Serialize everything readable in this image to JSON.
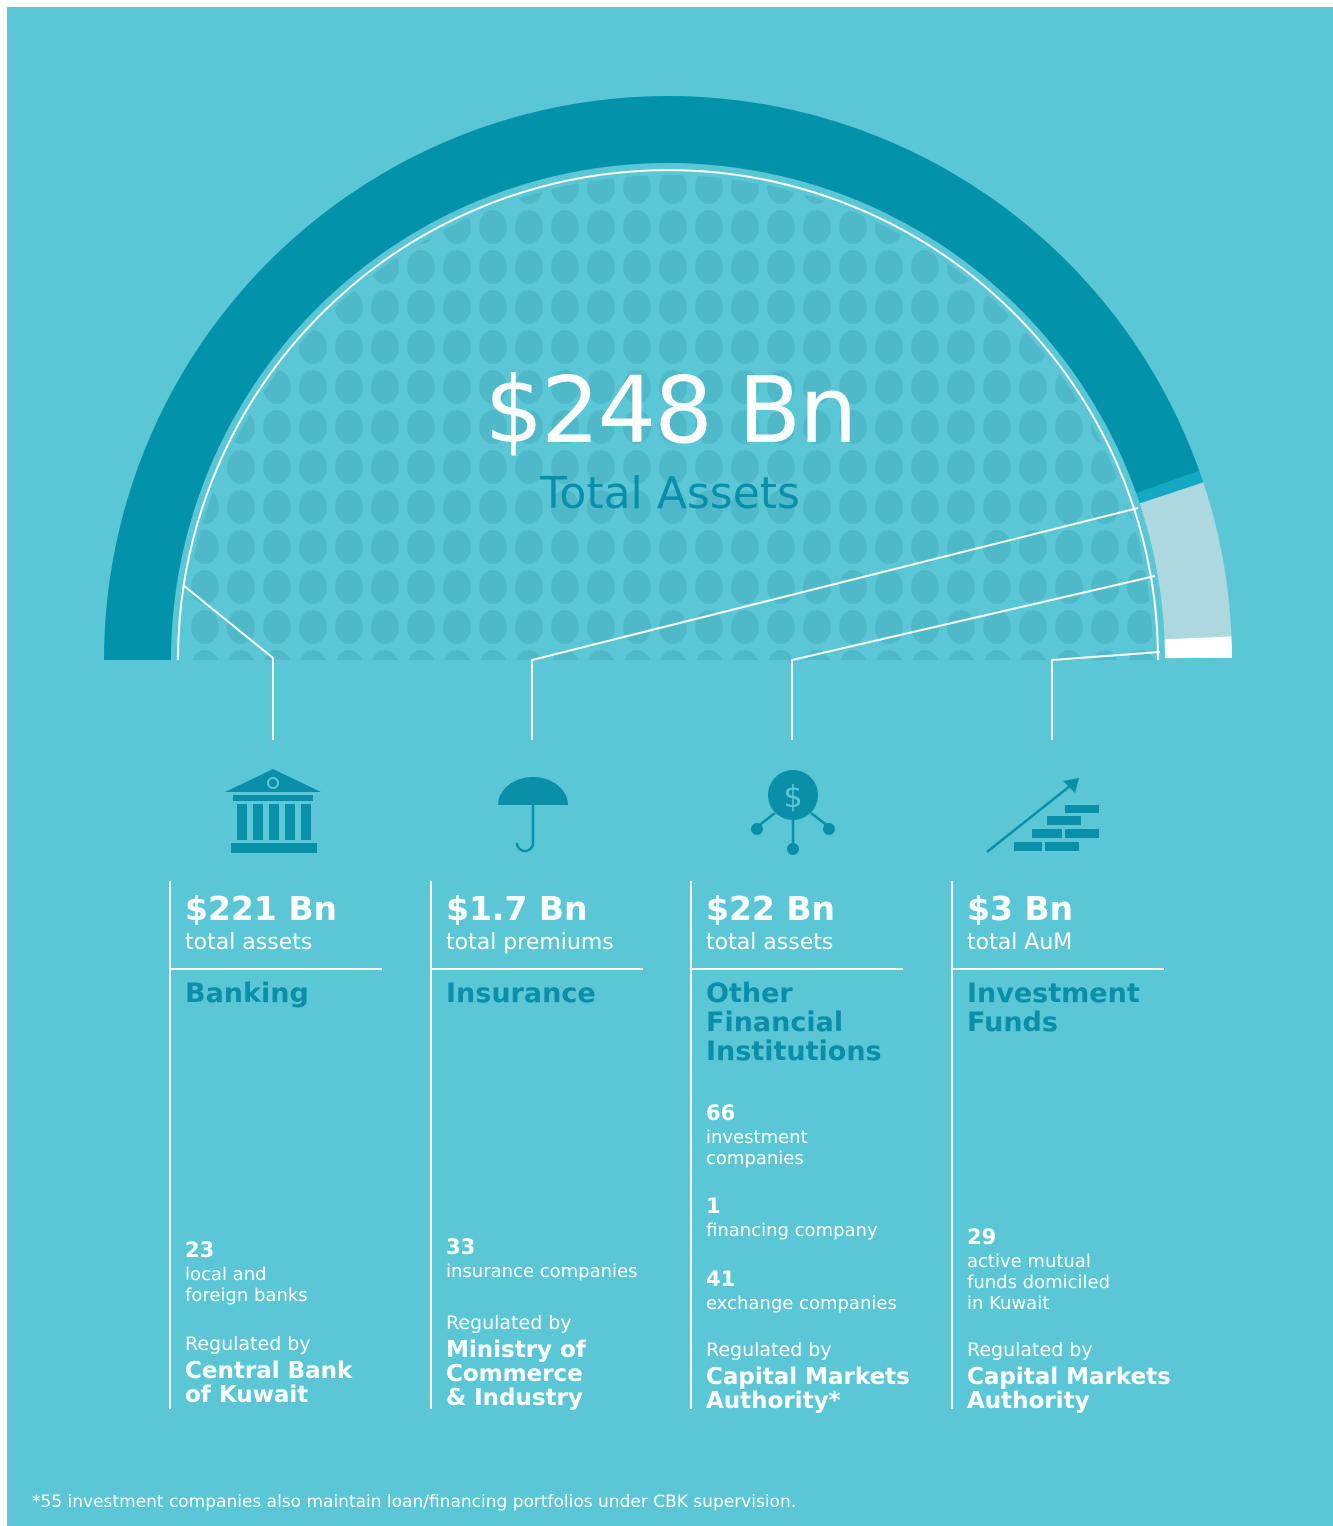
{
  "total": {
    "value": 248,
    "label": "$248 Bn",
    "caption": "Total Assets"
  },
  "sectors": [
    {
      "value": 221,
      "value_label": "$221 Bn",
      "measure": "total assets",
      "color": "#0293ab",
      "name": [
        "Banking"
      ],
      "counts": [
        {
          "number": 23,
          "text": [
            "local and",
            "foreign banks"
          ]
        }
      ],
      "regulated_by": "Regulated by",
      "regulator": [
        "Central Bank",
        "of Kuwait"
      ]
    },
    {
      "value": 1.7,
      "value_label": "$1.7 Bn",
      "measure": "total premiums",
      "color": "#13a9c2",
      "name": [
        "Insurance"
      ],
      "counts": [
        {
          "number": 33,
          "text": [
            "insurance companies"
          ]
        }
      ],
      "regulated_by": "Regulated by",
      "regulator": [
        "Ministry of",
        "Commerce",
        "& Industry"
      ]
    },
    {
      "value": 22,
      "value_label": "$22 Bn",
      "measure": "total assets",
      "color": "#acd8e0",
      "name": [
        "Other",
        "Financial",
        "Institutions"
      ],
      "counts": [
        {
          "number": 66,
          "text": [
            "investment",
            "companies"
          ]
        },
        {
          "number": 1,
          "text": [
            "financing company"
          ]
        },
        {
          "number": 41,
          "text": [
            "exchange companies"
          ]
        }
      ],
      "regulated_by": "Regulated by",
      "regulator": [
        "Capital Markets",
        "Authority*"
      ]
    },
    {
      "value": 3,
      "value_label": "$3 Bn",
      "measure": "total AuM",
      "color": "#ffffff",
      "name": [
        "Investment",
        "Funds"
      ],
      "counts": [
        {
          "number": 29,
          "text": [
            "active mutual",
            "funds domiciled",
            "in Kuwait"
          ]
        }
      ],
      "regulated_by": "Regulated by",
      "regulator": [
        "Capital Markets",
        "Authority"
      ]
    }
  ],
  "footnote": "*55 investment companies also maintain loan/financing portfolios under CBK supervision."
}
